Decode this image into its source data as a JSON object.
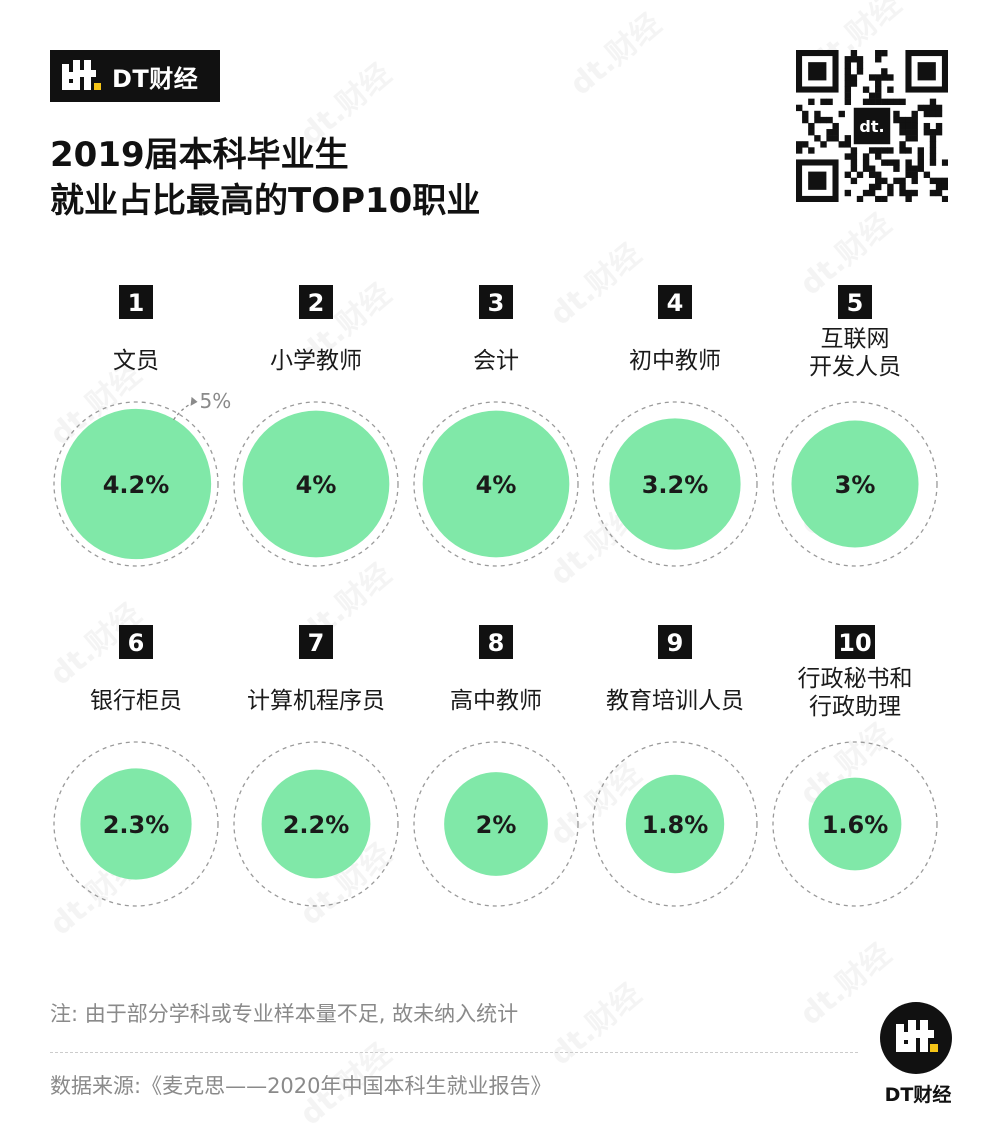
{
  "brand": {
    "logo_text": "DT财经",
    "footer_text": "DT财经",
    "watermark_text": "dt.财经"
  },
  "title_lines": [
    "2019届本科毕业生",
    "就业占比最高的TOP10职业"
  ],
  "chart_data": {
    "type": "bubble",
    "title": "2019届本科毕业生就业占比最高的TOP10职业",
    "unit": "%",
    "reference_value": 5,
    "reference_label": "5%",
    "items": [
      {
        "rank": "1",
        "label_lines": [
          "文员"
        ],
        "value": 4.2,
        "value_label": "4.2%"
      },
      {
        "rank": "2",
        "label_lines": [
          "小学教师"
        ],
        "value": 4,
        "value_label": "4%"
      },
      {
        "rank": "3",
        "label_lines": [
          "会计"
        ],
        "value": 4,
        "value_label": "4%"
      },
      {
        "rank": "4",
        "label_lines": [
          "初中教师"
        ],
        "value": 3.2,
        "value_label": "3.2%"
      },
      {
        "rank": "5",
        "label_lines": [
          "互联网",
          "开发人员"
        ],
        "value": 3,
        "value_label": "3%"
      },
      {
        "rank": "6",
        "label_lines": [
          "银行柜员"
        ],
        "value": 2.3,
        "value_label": "2.3%"
      },
      {
        "rank": "7",
        "label_lines": [
          "计算机程序员"
        ],
        "value": 2.2,
        "value_label": "2.2%"
      },
      {
        "rank": "8",
        "label_lines": [
          "高中教师"
        ],
        "value": 2,
        "value_label": "2%"
      },
      {
        "rank": "9",
        "label_lines": [
          "教育培训人员"
        ],
        "value": 1.8,
        "value_label": "1.8%"
      },
      {
        "rank": "10",
        "label_lines": [
          "行政秘书和",
          "行政助理"
        ],
        "value": 1.6,
        "value_label": "1.6%"
      }
    ]
  },
  "footer": {
    "note": "注: 由于部分学科或专业样本量不足, 故未纳入统计",
    "source": "数据来源:《麦克思——2020年中国本科生就业报告》"
  },
  "colors": {
    "bubble": "#80e8a8",
    "badge": "#111111"
  }
}
